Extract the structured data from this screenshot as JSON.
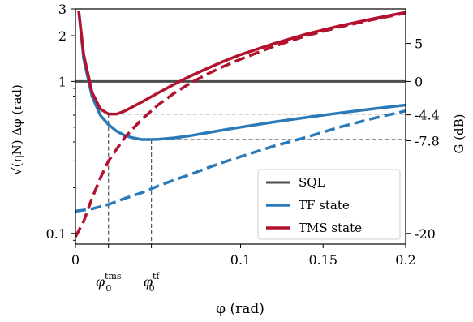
{
  "chart_data": {
    "type": "line",
    "xlabel": "φ (rad)",
    "ylabel_left": "√(ηN) Δφ (rad)",
    "ylabel_right": "G (dB)",
    "xlim": [
      0,
      0.2
    ],
    "ylim": [
      0.085,
      3
    ],
    "yscale": "log",
    "x_ticks": [
      {
        "value": 0,
        "label": "0"
      },
      {
        "value": 0.1,
        "label": "0.1"
      },
      {
        "value": 0.15,
        "label": "0.15"
      },
      {
        "value": 0.2,
        "label": "0.2"
      }
    ],
    "x_special_ticks": [
      {
        "value": 0.02,
        "base": "φ",
        "sub": "0",
        "sup": "tms"
      },
      {
        "value": 0.046,
        "base": "φ",
        "sub": "0",
        "sup": "tf"
      }
    ],
    "y_left_ticks": [
      {
        "value": 0.1,
        "label": "0.1"
      },
      {
        "value": 1,
        "label": "1"
      },
      {
        "value": 2,
        "label": "2"
      },
      {
        "value": 3,
        "label": "3"
      }
    ],
    "y_right_ticks": [
      {
        "value": 5,
        "label": "5"
      },
      {
        "value": 0,
        "label": "0"
      },
      {
        "value": -4.4,
        "label": "-4.4"
      },
      {
        "value": -7.8,
        "label": "-7.8"
      },
      {
        "value": -20,
        "label": "-20"
      }
    ],
    "legend_position": "bottom-right",
    "series": [
      {
        "name": "SQL",
        "color": "#4d4d4d",
        "style": "solid",
        "points": [
          [
            0,
            1
          ],
          [
            0.2,
            1
          ]
        ]
      },
      {
        "name": "TF state",
        "color": "#2a7ab9",
        "style": "solid",
        "points": [
          [
            0.002,
            2.9
          ],
          [
            0.005,
            1.4
          ],
          [
            0.01,
            0.8
          ],
          [
            0.015,
            0.6
          ],
          [
            0.02,
            0.52
          ],
          [
            0.025,
            0.47
          ],
          [
            0.03,
            0.44
          ],
          [
            0.035,
            0.425
          ],
          [
            0.04,
            0.415
          ],
          [
            0.046,
            0.415
          ],
          [
            0.05,
            0.416
          ],
          [
            0.06,
            0.425
          ],
          [
            0.07,
            0.44
          ],
          [
            0.08,
            0.46
          ],
          [
            0.09,
            0.48
          ],
          [
            0.1,
            0.5
          ],
          [
            0.12,
            0.54
          ],
          [
            0.14,
            0.58
          ],
          [
            0.16,
            0.62
          ],
          [
            0.18,
            0.66
          ],
          [
            0.2,
            0.7
          ]
        ]
      },
      {
        "name": "TF state (dashed)",
        "color": "#2a7ab9",
        "style": "dashed",
        "points": [
          [
            0,
            0.14
          ],
          [
            0.01,
            0.145
          ],
          [
            0.02,
            0.155
          ],
          [
            0.03,
            0.17
          ],
          [
            0.04,
            0.185
          ],
          [
            0.05,
            0.205
          ],
          [
            0.06,
            0.225
          ],
          [
            0.07,
            0.245
          ],
          [
            0.08,
            0.27
          ],
          [
            0.09,
            0.295
          ],
          [
            0.1,
            0.32
          ],
          [
            0.12,
            0.375
          ],
          [
            0.14,
            0.43
          ],
          [
            0.16,
            0.5
          ],
          [
            0.18,
            0.57
          ],
          [
            0.2,
            0.64
          ]
        ]
      },
      {
        "name": "TMS state",
        "color": "#b2122e",
        "style": "solid",
        "points": [
          [
            0.002,
            2.9
          ],
          [
            0.005,
            1.5
          ],
          [
            0.01,
            0.85
          ],
          [
            0.015,
            0.66
          ],
          [
            0.02,
            0.61
          ],
          [
            0.025,
            0.61
          ],
          [
            0.03,
            0.64
          ],
          [
            0.04,
            0.73
          ],
          [
            0.05,
            0.84
          ],
          [
            0.06,
            0.96
          ],
          [
            0.07,
            1.09
          ],
          [
            0.08,
            1.22
          ],
          [
            0.09,
            1.36
          ],
          [
            0.1,
            1.5
          ],
          [
            0.12,
            1.77
          ],
          [
            0.14,
            2.05
          ],
          [
            0.16,
            2.32
          ],
          [
            0.18,
            2.58
          ],
          [
            0.2,
            2.85
          ]
        ]
      },
      {
        "name": "TMS state (dashed)",
        "color": "#b2122e",
        "style": "dashed",
        "points": [
          [
            0,
            0.095
          ],
          [
            0.005,
            0.12
          ],
          [
            0.01,
            0.17
          ],
          [
            0.015,
            0.23
          ],
          [
            0.02,
            0.3
          ],
          [
            0.03,
            0.43
          ],
          [
            0.04,
            0.56
          ],
          [
            0.05,
            0.7
          ],
          [
            0.06,
            0.84
          ],
          [
            0.07,
            0.98
          ],
          [
            0.08,
            1.12
          ],
          [
            0.09,
            1.26
          ],
          [
            0.1,
            1.4
          ],
          [
            0.12,
            1.7
          ],
          [
            0.14,
            2.0
          ],
          [
            0.16,
            2.28
          ],
          [
            0.18,
            2.55
          ],
          [
            0.2,
            2.82
          ]
        ]
      }
    ],
    "reference_lines": [
      {
        "name": "tms-min",
        "y": 0.61,
        "x_from": 0.02,
        "x_to": 0.2,
        "drop_to_axis": true
      },
      {
        "name": "tf-min",
        "y": 0.415,
        "x_from": 0.046,
        "x_to": 0.2,
        "drop_to_axis": true
      }
    ]
  }
}
